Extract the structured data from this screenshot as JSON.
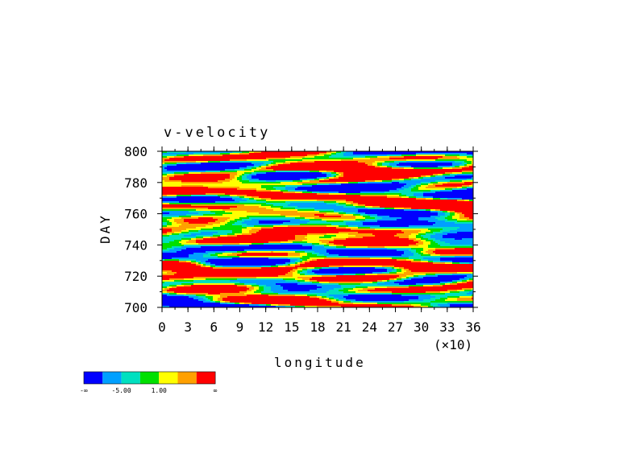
{
  "chart_data": {
    "type": "heatmap",
    "title": "v-velocity",
    "xlabel": "longitude",
    "ylabel": "DAY",
    "x_multiplier_label": "(×10)",
    "xlim": [
      0,
      36
    ],
    "ylim": [
      700,
      800
    ],
    "x_ticks": [
      "0",
      "3",
      "6",
      "9",
      "12",
      "15",
      "18",
      "21",
      "24",
      "27",
      "30",
      "33",
      "36"
    ],
    "y_ticks": [
      "700",
      "720",
      "740",
      "760",
      "780",
      "800"
    ],
    "colorbar": {
      "colors": [
        "#0000ff",
        "#00a0ff",
        "#00e0c0",
        "#00e000",
        "#ffff00",
        "#ffa000",
        "#ff0000"
      ],
      "labels": [
        "-∞",
        "-5.00",
        "1.00",
        "∞"
      ]
    }
  }
}
